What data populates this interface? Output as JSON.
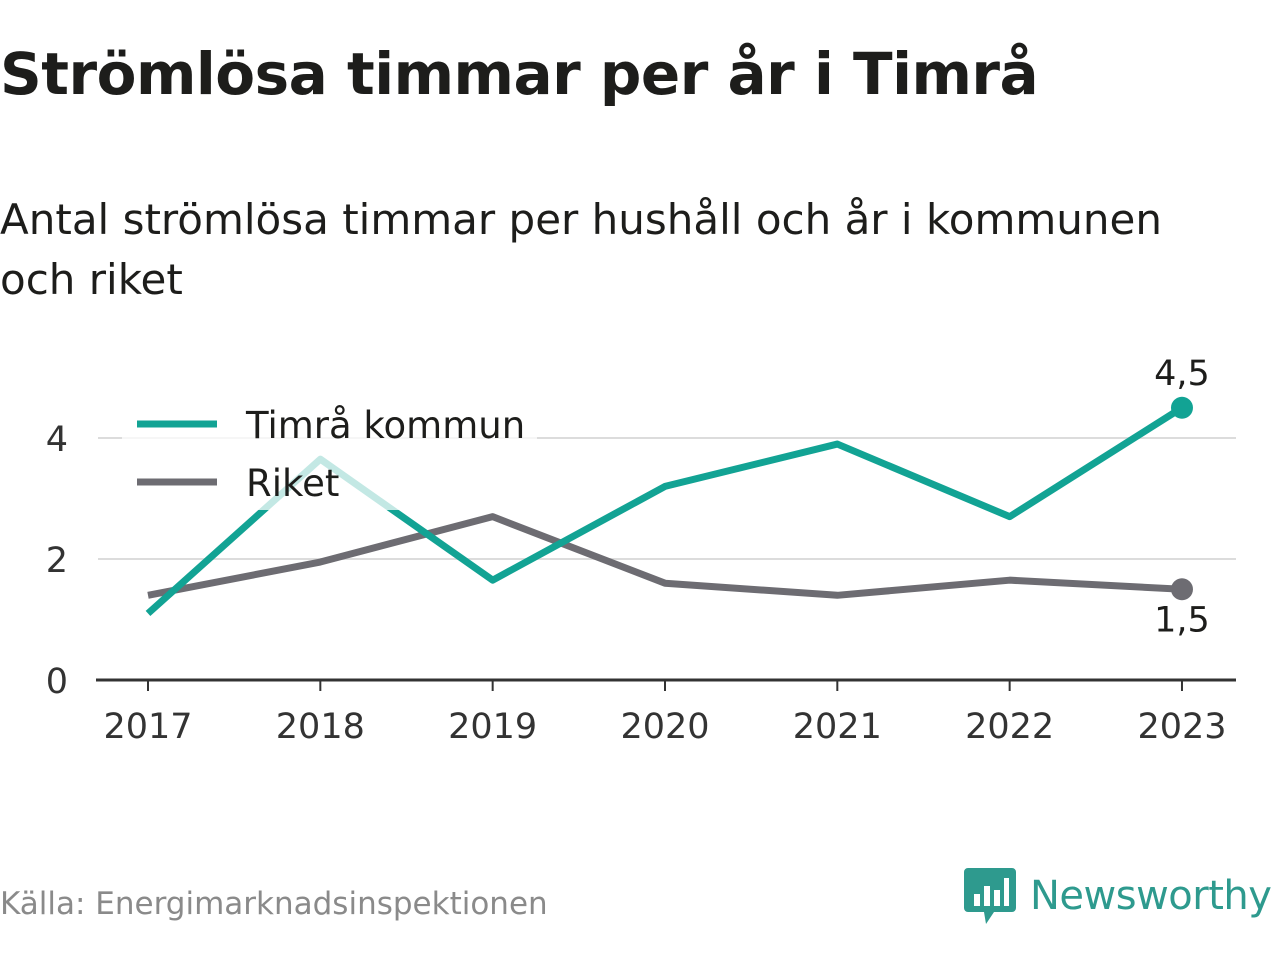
{
  "title": "Strömlösa timmar per år i Timrå",
  "subtitle": "Antal strömlösa timmar per hushåll och år i kommunen och riket",
  "source": "Källa: Energimarknadsinspektionen",
  "brand": "Newsworthy",
  "colors": {
    "kommun": "#12a394",
    "riket": "#6d6c72",
    "grid": "#dcdcdc",
    "axis": "#333333",
    "brand": "#2e9a8e"
  },
  "chart_data": {
    "type": "line",
    "x": [
      "2017",
      "2018",
      "2019",
      "2020",
      "2021",
      "2022",
      "2023"
    ],
    "yticks": [
      "0",
      "2",
      "4"
    ],
    "ylim": [
      0,
      5
    ],
    "grid": true,
    "legend_position": "top-left",
    "series": [
      {
        "name": "Timrå kommun",
        "values": [
          1.1,
          3.65,
          1.65,
          3.2,
          3.9,
          2.7,
          4.5
        ],
        "end_label": "4,5"
      },
      {
        "name": "Riket",
        "values": [
          1.4,
          1.95,
          2.7,
          1.6,
          1.4,
          1.65,
          1.5
        ],
        "end_label": "1,5"
      }
    ]
  }
}
